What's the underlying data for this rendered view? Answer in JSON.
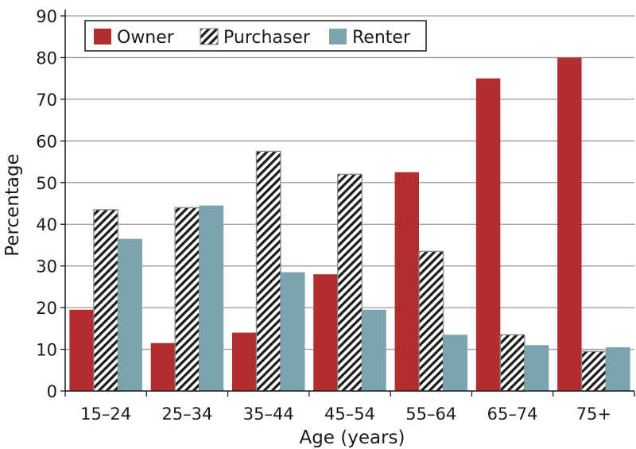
{
  "chart_data": {
    "type": "bar",
    "title": "",
    "xlabel": "Age (years)",
    "ylabel": "Percentage",
    "ylim": [
      0,
      90
    ],
    "yticks": [
      0,
      10,
      20,
      30,
      40,
      50,
      60,
      70,
      80,
      90
    ],
    "grid": true,
    "legend_position": "top-left",
    "categories": [
      "15–24",
      "25–34",
      "35–44",
      "45–54",
      "55–64",
      "65–74",
      "75+"
    ],
    "series": [
      {
        "name": "Owner",
        "color": "#b32d2e",
        "pattern": "solid",
        "values": [
          19.5,
          11.5,
          14,
          28,
          52.5,
          75,
          80
        ]
      },
      {
        "name": "Purchaser",
        "color": "#1a1a1a",
        "pattern": "diagonal-hatch",
        "values": [
          43.5,
          44,
          57.5,
          52,
          33.5,
          13.5,
          9.5
        ]
      },
      {
        "name": "Renter",
        "color": "#7ba3b0",
        "pattern": "solid",
        "values": [
          36.5,
          44.5,
          28.5,
          19.5,
          13.5,
          11,
          10.5
        ]
      }
    ]
  }
}
